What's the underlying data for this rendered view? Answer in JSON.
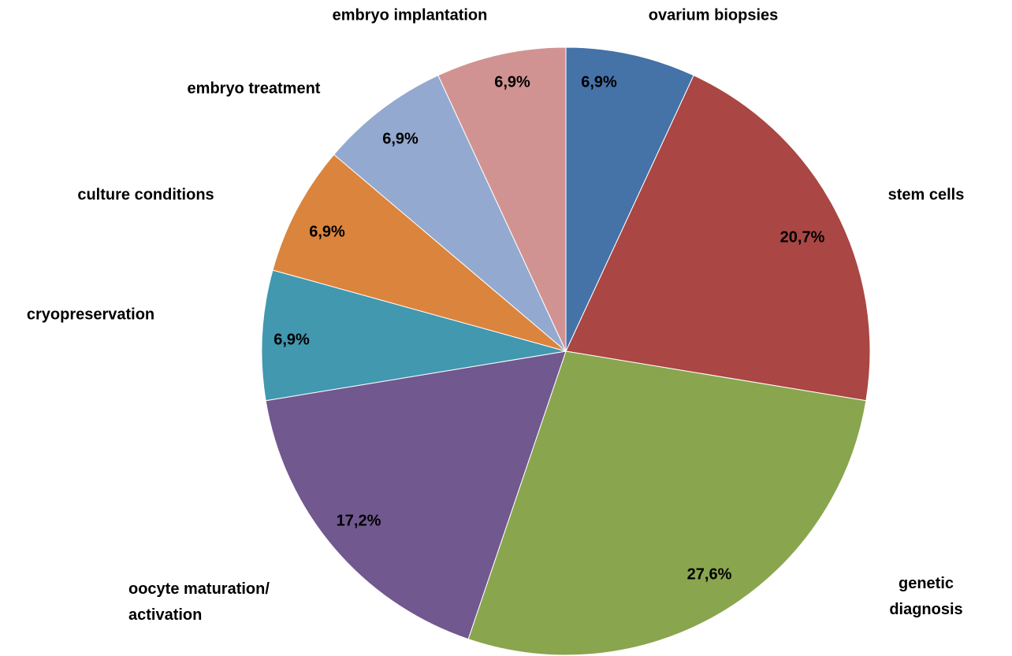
{
  "chart_data": {
    "type": "pie",
    "categories": [
      "ovarium biopsies",
      "stem cells",
      "genetic diagnosis",
      "oocyte maturation/\nactivation",
      "cryopreservation",
      "culture conditions",
      "embryo treatment",
      "embryo implantation"
    ],
    "values": [
      6.9,
      20.7,
      27.6,
      17.2,
      6.9,
      6.9,
      6.9,
      6.9
    ],
    "value_labels": [
      "6,9%",
      "20,7%",
      "27,6%",
      "17,2%",
      "6,9%",
      "6,9%",
      "6,9%",
      "6,9%"
    ],
    "colors": [
      "#4572a7",
      "#aa4643",
      "#89a54e",
      "#71588f",
      "#4198af",
      "#db843d",
      "#93a9cf",
      "#d19392"
    ]
  }
}
